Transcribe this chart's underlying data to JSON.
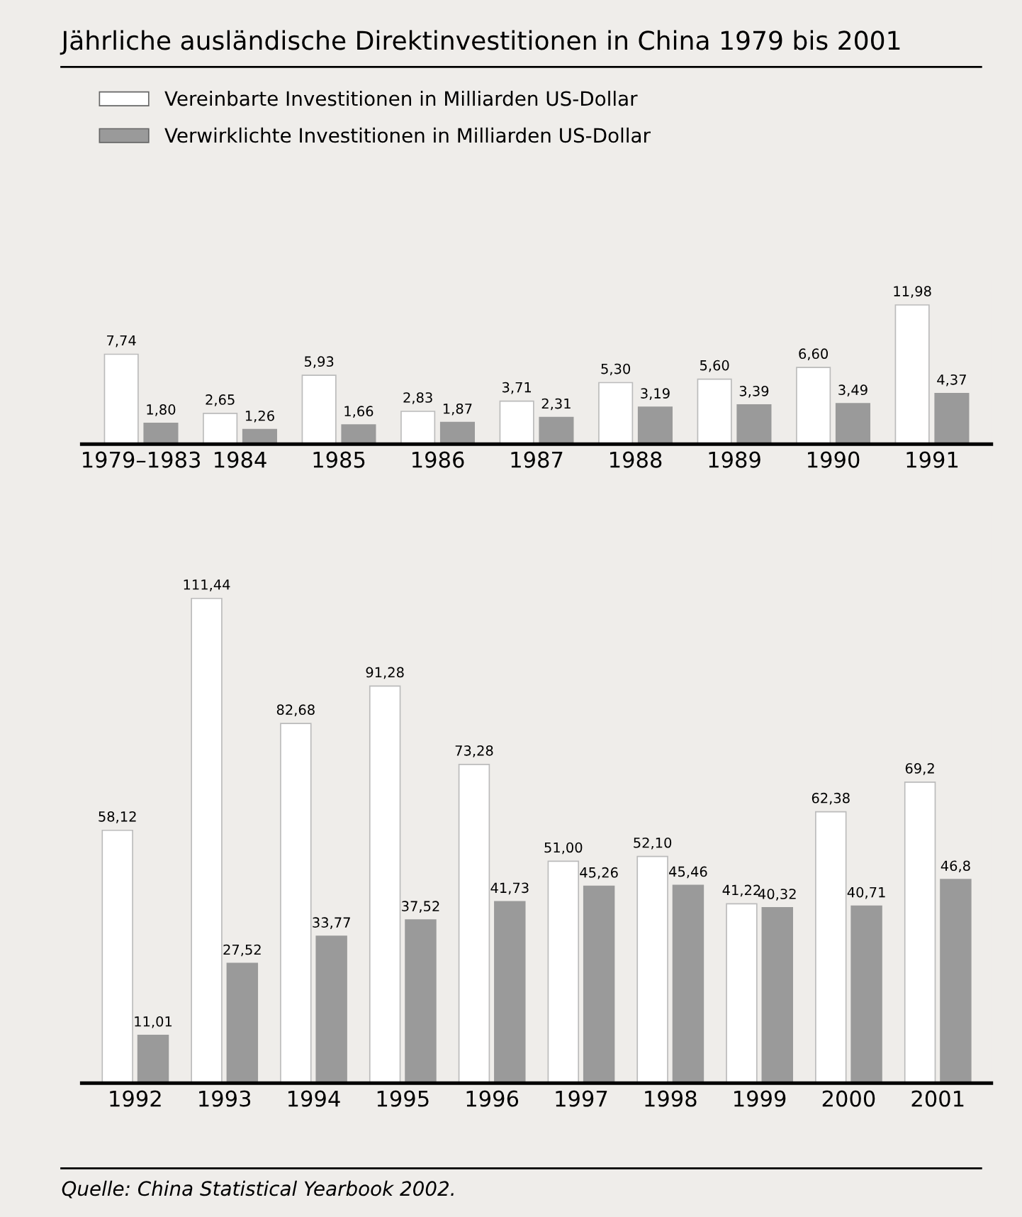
{
  "chart_data": [
    {
      "type": "bar",
      "title": "Jährliche ausländische Direktinvestitionen in China 1979 bis 2001",
      "legend": "top left",
      "tick_labels": "x",
      "categories": [
        "1979–1983",
        "1984",
        "1985",
        "1986",
        "1987",
        "1988",
        "1989",
        "1990",
        "1991"
      ],
      "series": [
        {
          "name": "Vereinbarte Investitionen in Milliarden US-Dollar",
          "color": "#ffffff",
          "values": [
            7.74,
            2.65,
            5.93,
            2.83,
            3.71,
            5.3,
            5.6,
            6.6,
            11.98
          ],
          "value_labels": [
            "7,74",
            "2,65",
            "5,93",
            "2,83",
            "3,71",
            "5,30",
            "5,60",
            "6,60",
            "11,98"
          ]
        },
        {
          "name": "Verwirklichte Investitionen in Milliarden US-Dollar",
          "color": "#9a9a9a",
          "values": [
            1.8,
            1.26,
            1.66,
            1.87,
            2.31,
            3.19,
            3.39,
            3.49,
            4.37
          ],
          "value_labels": [
            "1,80",
            "1,26",
            "1,66",
            "1,87",
            "2,31",
            "3,19",
            "3,39",
            "3,49",
            "4,37"
          ]
        }
      ]
    },
    {
      "type": "bar",
      "tick_labels": "x",
      "annotations": [
        "Quelle: China Statistical Yearbook 2002."
      ],
      "categories": [
        "1992",
        "1993",
        "1994",
        "1995",
        "1996",
        "1997",
        "1998",
        "1999",
        "2000",
        "2001"
      ],
      "series": [
        {
          "color": "#ffffff",
          "values": [
            58.12,
            111.44,
            82.68,
            91.28,
            73.28,
            51.0,
            52.1,
            41.22,
            62.38,
            69.2
          ],
          "value_labels": [
            "58,12",
            "111,44",
            "82,68",
            "91,28",
            "73,28",
            "51,00",
            "52,10",
            "41,22",
            "62,38",
            "69,2"
          ]
        },
        {
          "color": "#9a9a9a",
          "values": [
            11.01,
            27.52,
            33.77,
            37.52,
            41.73,
            45.26,
            45.46,
            40.32,
            40.71,
            46.8
          ],
          "value_labels": [
            "11,01",
            "27,52",
            "33,77",
            "37,52",
            "41,73",
            "45,26",
            "45,46",
            "40,32",
            "40,71",
            "46,8"
          ]
        }
      ]
    }
  ]
}
